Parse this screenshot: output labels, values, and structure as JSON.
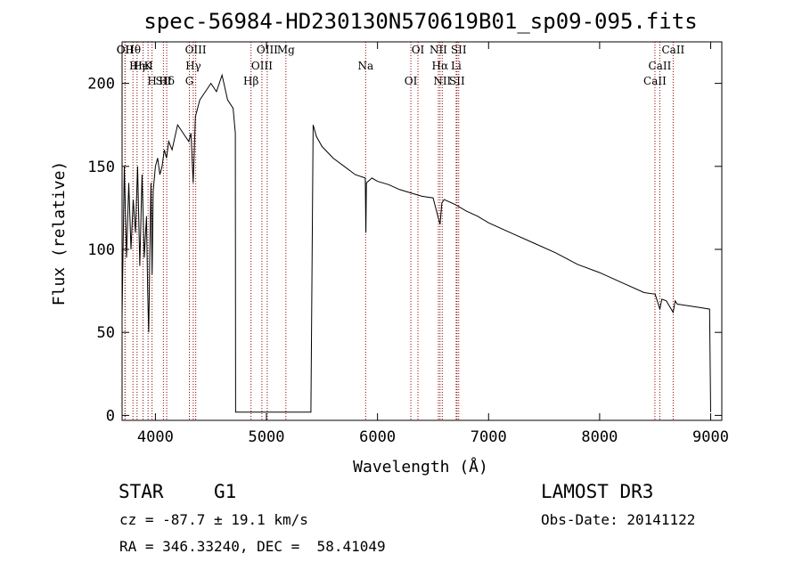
{
  "chart_data": {
    "type": "line",
    "title": "spec-56984-HD230130N570619B01_sp09-095.fits",
    "xlabel": "Wavelength (Å)",
    "ylabel": "Flux (relative)",
    "xlim": [
      3700,
      9100
    ],
    "ylim": [
      -3,
      225
    ],
    "xticks": [
      4000,
      5000,
      6000,
      7000,
      8000,
      9000
    ],
    "yticks": [
      0,
      50,
      100,
      150,
      200
    ],
    "series": [
      {
        "name": "flux",
        "x": [
          3700,
          3720,
          3740,
          3760,
          3780,
          3800,
          3820,
          3840,
          3860,
          3880,
          3900,
          3920,
          3930,
          3940,
          3950,
          3960,
          3970,
          3980,
          4000,
          4020,
          4040,
          4060,
          4080,
          4100,
          4120,
          4150,
          4200,
          4250,
          4300,
          4320,
          4340,
          4360,
          4400,
          4450,
          4500,
          4550,
          4600,
          4650,
          4700,
          4720,
          4722,
          5400,
          5420,
          5450,
          5500,
          5600,
          5700,
          5800,
          5890,
          5895,
          5900,
          5950,
          6000,
          6100,
          6200,
          6300,
          6400,
          6500,
          6563,
          6580,
          6600,
          6700,
          6800,
          6900,
          7000,
          7200,
          7400,
          7600,
          7800,
          8000,
          8200,
          8400,
          8500,
          8542,
          8560,
          8600,
          8662,
          8680,
          8700,
          8800,
          8900,
          8990,
          9000
        ],
        "y": [
          60,
          150,
          95,
          140,
          100,
          130,
          110,
          150,
          90,
          145,
          95,
          120,
          75,
          50,
          100,
          140,
          85,
          135,
          150,
          155,
          145,
          150,
          160,
          155,
          165,
          160,
          175,
          170,
          165,
          170,
          140,
          180,
          190,
          195,
          200,
          195,
          205,
          190,
          185,
          170,
          2,
          2,
          175,
          168,
          162,
          155,
          150,
          145,
          143,
          110,
          140,
          143,
          141,
          139,
          136,
          134,
          132,
          131,
          115,
          128,
          130,
          127,
          123,
          120,
          116,
          110,
          104,
          98,
          91,
          86,
          80,
          74,
          73,
          64,
          70,
          69,
          62,
          69,
          67,
          66,
          65,
          64,
          2
        ]
      }
    ],
    "spectral_lines": [
      {
        "label": "Hθ",
        "wl": 3798
      },
      {
        "label": "K",
        "wl": 3934
      },
      {
        "label": "Hδ",
        "wl": 4102
      },
      {
        "label": "OII",
        "wl": 3727
      },
      {
        "label": "HeI",
        "wl": 3889
      },
      {
        "label": "SII",
        "wl": 4072
      },
      {
        "label": "OII",
        "wl": 3727
      },
      {
        "label": "Hη",
        "wl": 3835
      },
      {
        "label": "H",
        "wl": 3970
      },
      {
        "label": "OIII",
        "wl": 4363
      },
      {
        "label": "Hγ",
        "wl": 4341
      },
      {
        "label": "G",
        "wl": 4306
      },
      {
        "label": "OIII",
        "wl": 5007
      },
      {
        "label": "OIII",
        "wl": 4959
      },
      {
        "label": "Hβ",
        "wl": 4861
      },
      {
        "label": "Mg",
        "wl": 5175
      },
      {
        "label": "Na",
        "wl": 5893
      },
      {
        "label": "OI",
        "wl": 6300
      },
      {
        "label": "OI",
        "wl": 6364
      },
      {
        "label": "Hα",
        "wl": 6563
      },
      {
        "label": "SII",
        "wl": 6716
      },
      {
        "label": "NII",
        "wl": 6548
      },
      {
        "label": "Li",
        "wl": 6708
      },
      {
        "label": "NII",
        "wl": 6583
      },
      {
        "label": "SII",
        "wl": 6731
      },
      {
        "label": "CaII",
        "wl": 8542
      },
      {
        "label": "CaII",
        "wl": 8498
      },
      {
        "label": "CaII",
        "wl": 8662
      }
    ],
    "line_color": "#000000",
    "marker_color": "#8b0000"
  },
  "info": {
    "class": "STAR",
    "subclass": "G1",
    "survey": "LAMOST DR3",
    "cz": "cz = -87.7 ± 19.1 km/s",
    "obs_date": "Obs-Date: 20141122",
    "coords": "RA = 346.33240, DEC =  58.41049"
  }
}
